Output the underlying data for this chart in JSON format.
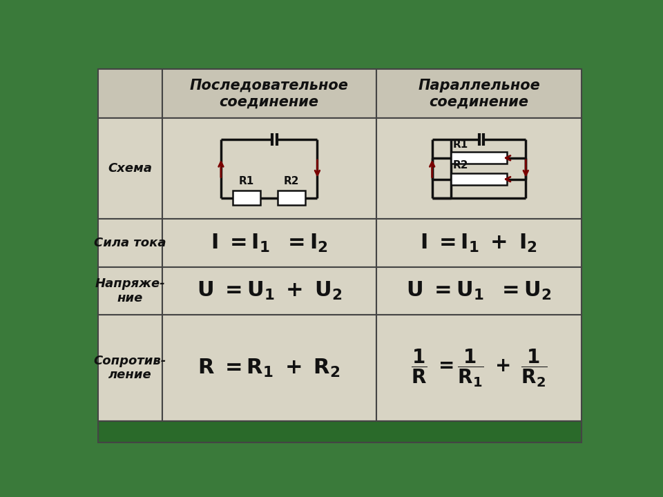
{
  "bg_color": "#3a7a3a",
  "table_bg": "#d8d4c4",
  "header_bg": "#c8c4b4",
  "cell_bg": "#d8d4c4",
  "border_color": "#444444",
  "text_color": "#111111",
  "title_col1": "Последовательное\nсоединение",
  "title_col2": "Параллельное\nсоединение",
  "row_labels": [
    "Схема",
    "Сила тока",
    "Напряже-\nние",
    "Сопротив-\nление"
  ],
  "circuit_line_color": "#111111",
  "circuit_arrow_color": "#7a0000",
  "resistor_fill": "#ffffff",
  "bottom_bar_color": "#2a6a2a"
}
